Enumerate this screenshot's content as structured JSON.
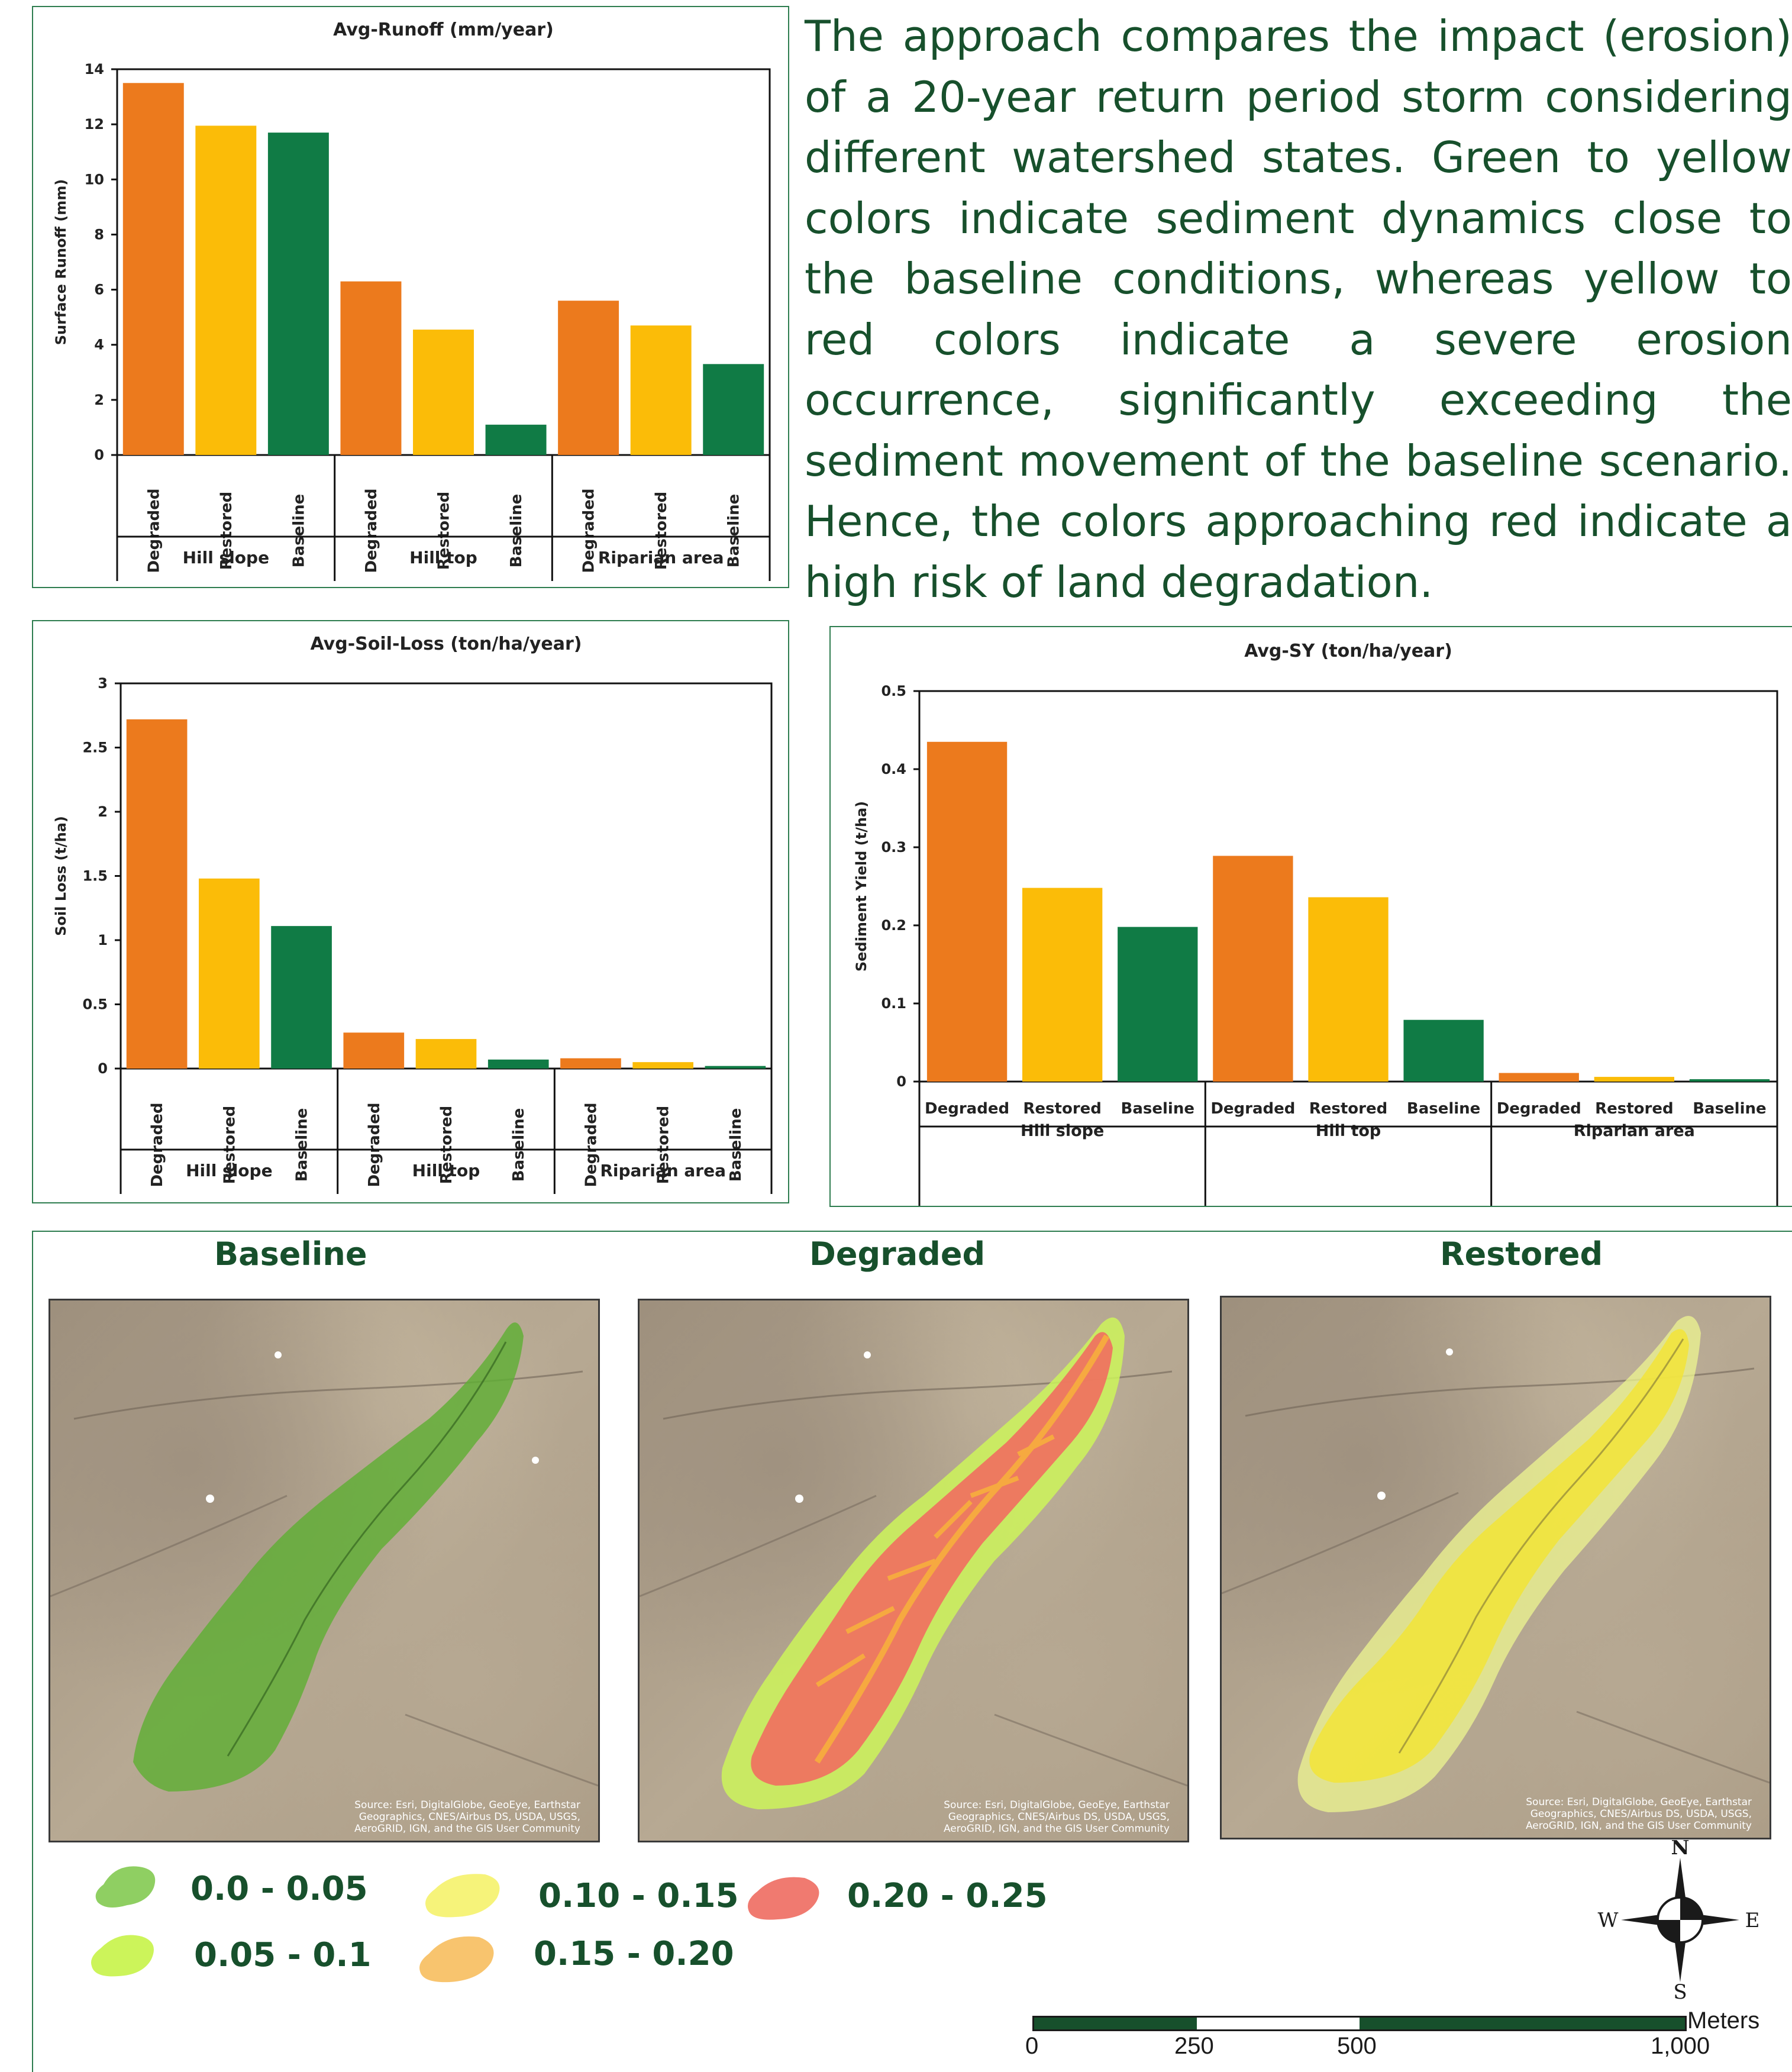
{
  "description": "The approach compares the impact (erosion) of a 20-year return period storm considering different watershed states. Green to yellow colors indicate sediment dynamics close to the baseline conditions, whereas yellow to red colors indicate a severe erosion occurrence, significantly exceeding the sediment movement of the baseline scenario. Hence, the colors approaching red indicate a high risk of land degradation.",
  "colors": {
    "degraded": "#ec7a1d",
    "restored": "#fbbc08",
    "baseline": "#107b45",
    "text_green": "#17502c"
  },
  "chart_data": [
    {
      "type": "bar",
      "title": "Avg-Runoff (mm/year)",
      "ylabel": "Surface Runoff (mm)",
      "xlabel": "",
      "ylim": [
        0,
        14
      ],
      "yticks": [
        "0",
        "2",
        "4",
        "6",
        "8",
        "10",
        "12",
        "14"
      ],
      "groups": [
        "Hill slope",
        "Hill top",
        "Riparian area"
      ],
      "categories": [
        "Degraded",
        "Restored",
        "Baseline"
      ],
      "series": [
        {
          "name": "Degraded",
          "values": [
            13.5,
            6.3,
            5.6
          ]
        },
        {
          "name": "Restored",
          "values": [
            11.95,
            4.55,
            4.7
          ]
        },
        {
          "name": "Baseline",
          "values": [
            11.7,
            1.1,
            3.3
          ]
        }
      ],
      "category_labels_vertical": true
    },
    {
      "type": "bar",
      "title": "Avg-Soil-Loss (ton/ha/year)",
      "ylabel": "Soil Loss (t/ha)",
      "xlabel": "",
      "ylim": [
        0,
        3
      ],
      "yticks": [
        "0",
        "0.5",
        "1",
        "1.5",
        "2",
        "2.5",
        "3"
      ],
      "groups": [
        "Hill slope",
        "Hill top",
        "Riparian area"
      ],
      "categories": [
        "Degraded",
        "Restored",
        "Baseline"
      ],
      "series": [
        {
          "name": "Degraded",
          "values": [
            2.72,
            0.28,
            0.08
          ]
        },
        {
          "name": "Restored",
          "values": [
            1.48,
            0.23,
            0.05
          ]
        },
        {
          "name": "Baseline",
          "values": [
            1.11,
            0.07,
            0.02
          ]
        }
      ],
      "category_labels_vertical": true
    },
    {
      "type": "bar",
      "title": "Avg-SY (ton/ha/year)",
      "ylabel": "Sediment Yield (t/ha)",
      "xlabel": "",
      "ylim": [
        0,
        0.5
      ],
      "yticks": [
        "0",
        "0.1",
        "0.2",
        "0.3",
        "0.4",
        "0.5"
      ],
      "groups": [
        "Hill slope",
        "Hill top",
        "Riparian area"
      ],
      "categories": [
        "Degraded",
        "Restored",
        "Baseline"
      ],
      "series": [
        {
          "name": "Degraded",
          "values": [
            0.435,
            0.289,
            0.011
          ]
        },
        {
          "name": "Restored",
          "values": [
            0.248,
            0.236,
            0.006
          ]
        },
        {
          "name": "Baseline",
          "values": [
            0.198,
            0.079,
            0.003
          ]
        }
      ],
      "category_labels_vertical": false
    }
  ],
  "maps": [
    {
      "title": "Baseline",
      "source": "Source: Esri, DigitalGlobe, GeoEye, Earthstar Geographics, CNES/Airbus DS, USDA, USGS, AeroGRID, IGN, and the GIS User Community"
    },
    {
      "title": "Degraded",
      "source": "Source: Esri, DigitalGlobe, GeoEye, Earthstar Geographics, CNES/Airbus DS, USDA, USGS, AeroGRID, IGN, and the GIS User Community"
    },
    {
      "title": "Restored",
      "source": "Source: Esri, DigitalGlobe, GeoEye, Earthstar Geographics, CNES/Airbus DS, USDA, USGS, AeroGRID, IGN, and the GIS User Community"
    }
  ],
  "legend": [
    {
      "label": "0.0 - 0.05",
      "color": "#8fcf62"
    },
    {
      "label": "0.05 - 0.1",
      "color": "#ccf45a"
    },
    {
      "label": "0.10 - 0.15",
      "color": "#f6f37a"
    },
    {
      "label": "0.15 - 0.20",
      "color": "#f8c46e"
    },
    {
      "label": "0.20 - 0.25",
      "color": "#f07a70"
    }
  ],
  "compass": {
    "n": "N",
    "s": "S",
    "e": "E",
    "w": "W"
  },
  "scale": {
    "unit": "Meters",
    "ticks": [
      "0",
      "250",
      "500",
      "1,000"
    ]
  }
}
